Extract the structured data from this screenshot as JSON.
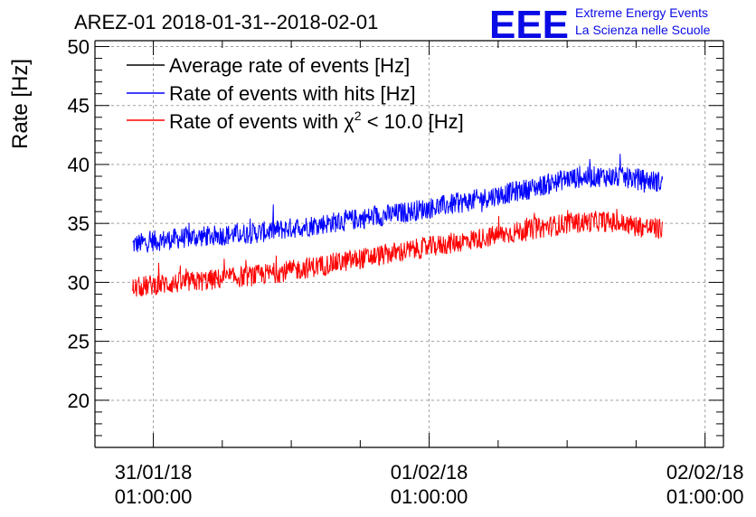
{
  "chart_data": {
    "type": "line",
    "title": "AREZ-01 2018-01-31--2018-02-01",
    "ylabel": "Rate [Hz]",
    "xlabel": "",
    "ylim": [
      16,
      50.5
    ],
    "xlim": [
      -5.08,
      49.6
    ],
    "x_unit": "hours since 31/01/18 01:00:00",
    "yticks": [
      20,
      25,
      30,
      35,
      40,
      45,
      50
    ],
    "xticks": [
      {
        "x": 0,
        "date": "31/01/18",
        "time": "01:00:00"
      },
      {
        "x": 24,
        "date": "01/02/18",
        "time": "01:00:00"
      },
      {
        "x": 48,
        "date": "02/02/18",
        "time": "01:00:00"
      }
    ],
    "grid": true,
    "legend_position": "top-left",
    "series": [
      {
        "name": "Average rate of events [Hz]",
        "color": "#000000",
        "x": [],
        "values": []
      },
      {
        "name": "Rate of events with hits [Hz]",
        "color": "#0000ff",
        "noise": 0.9,
        "x": [
          -1.8,
          0,
          3,
          6,
          9,
          12,
          15,
          18,
          21,
          24,
          27,
          30,
          33,
          36,
          39,
          42,
          44.3
        ],
        "values": [
          33.2,
          33.5,
          33.8,
          34.0,
          34.2,
          34.6,
          35.0,
          35.4,
          35.8,
          36.3,
          36.8,
          37.4,
          38.0,
          38.8,
          39.0,
          38.8,
          38.5
        ]
      },
      {
        "name": "Rate of events with χ² < 10.0 [Hz]",
        "label_prefix": "Rate of events with ",
        "label_chi": "χ",
        "label_sup": "2",
        "label_suffix": " < 10.0 [Hz]",
        "color": "#ff0000",
        "noise": 0.9,
        "x": [
          -1.8,
          0,
          3,
          6,
          9,
          12,
          15,
          18,
          21,
          24,
          27,
          30,
          33,
          36,
          39,
          42,
          44.3
        ],
        "values": [
          29.5,
          29.8,
          30.0,
          30.3,
          30.6,
          31.0,
          31.5,
          32.0,
          32.5,
          33.0,
          33.5,
          34.0,
          34.5,
          35.0,
          35.2,
          34.8,
          34.5
        ]
      }
    ]
  },
  "logo": {
    "mark": "EEE",
    "line1": "Extreme Energy Events",
    "line2": "La Scienza nelle Scuole",
    "color": "#0a0ae6"
  }
}
